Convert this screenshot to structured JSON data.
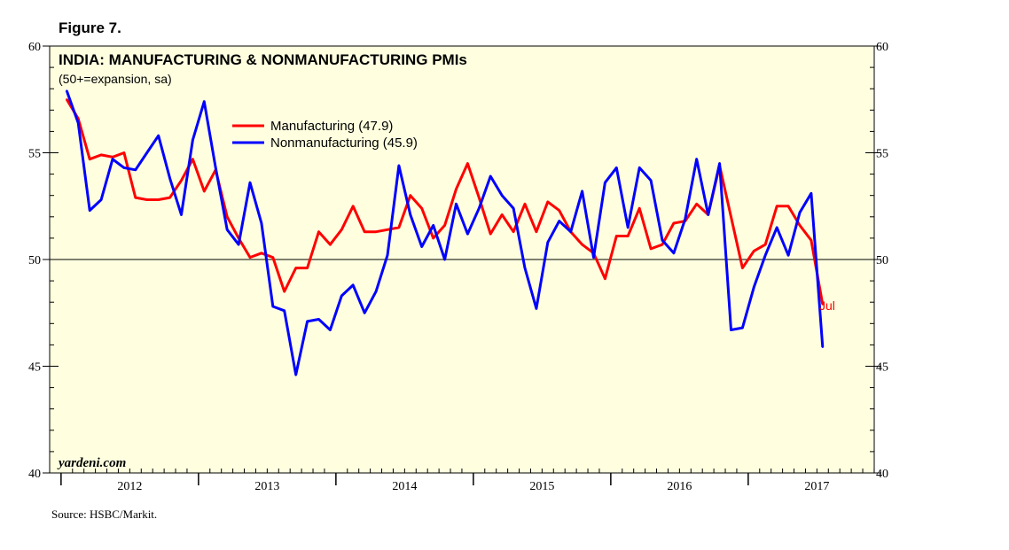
{
  "figure_label": "Figure 7.",
  "source": "Source: HSBC/Markit.",
  "watermark": "yardeni.com",
  "end_label": "Jul",
  "colors": {
    "plot_bg": "#ffffe0",
    "manufacturing": "#ff0000",
    "nonmanufacturing": "#0000ff",
    "axis": "#000000"
  },
  "chart_data": {
    "type": "line",
    "title": "INDIA: MANUFACTURING & NONMANUFACTURING PMIs",
    "subtitle": "(50+=expansion, sa)",
    "xlabel": "",
    "ylabel": "",
    "ylim": [
      40,
      60
    ],
    "xlim": [
      2011.917,
      2017.917
    ],
    "y_ticks": [
      40,
      45,
      50,
      55,
      60
    ],
    "x_tick_labels": [
      "2012",
      "2013",
      "2014",
      "2015",
      "2016",
      "2017"
    ],
    "reference_line": 50,
    "legend_position": "upper-center",
    "start": "2012-01",
    "series": [
      {
        "name": "Manufacturing (47.9)",
        "color": "#ff0000",
        "values": [
          57.5,
          56.6,
          54.7,
          54.9,
          54.8,
          55.0,
          52.9,
          52.8,
          52.8,
          52.9,
          53.7,
          54.7,
          53.2,
          54.2,
          52.0,
          51.0,
          50.1,
          50.3,
          50.1,
          48.5,
          49.6,
          49.6,
          51.3,
          50.7,
          51.4,
          52.5,
          51.3,
          51.3,
          51.4,
          51.5,
          53.0,
          52.4,
          51.0,
          51.6,
          53.3,
          54.5,
          52.9,
          51.2,
          52.1,
          51.3,
          52.6,
          51.3,
          52.7,
          52.3,
          51.3,
          50.7,
          50.3,
          49.1,
          51.1,
          51.1,
          52.4,
          50.5,
          50.7,
          51.7,
          51.8,
          52.6,
          52.1,
          54.4,
          52.0,
          49.6,
          50.4,
          50.7,
          52.5,
          52.5,
          51.6,
          50.9,
          47.9
        ]
      },
      {
        "name": "Nonmanufacturing (45.9)",
        "color": "#0000ff",
        "values": [
          57.9,
          56.4,
          52.3,
          52.8,
          54.7,
          54.3,
          54.2,
          55.0,
          55.8,
          53.8,
          52.1,
          55.6,
          57.4,
          54.3,
          51.4,
          50.7,
          53.6,
          51.7,
          47.8,
          47.6,
          44.6,
          47.1,
          47.2,
          46.7,
          48.3,
          48.8,
          47.5,
          48.5,
          50.2,
          54.4,
          52.1,
          50.6,
          51.6,
          50.0,
          52.6,
          51.2,
          52.4,
          53.9,
          53.0,
          52.4,
          49.6,
          47.7,
          50.8,
          51.8,
          51.3,
          53.2,
          50.1,
          53.6,
          54.3,
          51.5,
          54.3,
          53.7,
          50.9,
          50.3,
          51.9,
          54.7,
          52.1,
          54.5,
          46.7,
          46.8,
          48.7,
          50.2,
          51.5,
          50.2,
          52.2,
          53.1,
          45.9
        ]
      }
    ]
  }
}
